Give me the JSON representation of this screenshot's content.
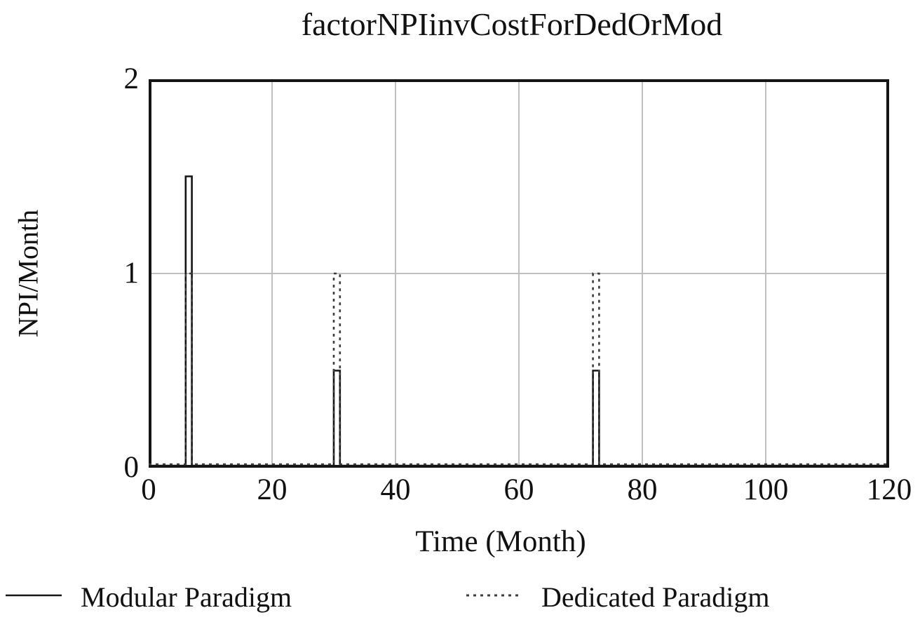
{
  "chart_data": {
    "type": "line",
    "title": "factorNPIinvCostForDedOrMod",
    "xlabel": "Time (Month)",
    "ylabel": "NPI/Month",
    "xlim": [
      0,
      120
    ],
    "ylim": [
      0,
      2
    ],
    "x_ticks": [
      0,
      20,
      40,
      60,
      80,
      100,
      120
    ],
    "y_ticks": [
      0,
      1,
      2
    ],
    "grid": true,
    "legend_position": "bottom",
    "colors": {
      "frame": "#151515",
      "gridline": "#bfbfbf",
      "solid_line": "#151515",
      "dotted_line": "#3d3d3d"
    },
    "series": [
      {
        "name": "Modular Paradigm",
        "style": "solid",
        "points": [
          [
            0,
            0
          ],
          [
            6,
            0
          ],
          [
            6,
            1.5
          ],
          [
            7,
            1.5
          ],
          [
            7,
            0
          ],
          [
            30,
            0
          ],
          [
            30,
            0.5
          ],
          [
            31,
            0.5
          ],
          [
            31,
            0
          ],
          [
            72,
            0
          ],
          [
            72,
            0.5
          ],
          [
            73,
            0.5
          ],
          [
            73,
            0
          ],
          [
            120,
            0
          ]
        ]
      },
      {
        "name": "Dedicated Paradigm",
        "style": "dotted",
        "points": [
          [
            0,
            0
          ],
          [
            6,
            0
          ],
          [
            6,
            1
          ],
          [
            7,
            1
          ],
          [
            7,
            0
          ],
          [
            30,
            0
          ],
          [
            30,
            1
          ],
          [
            31,
            1
          ],
          [
            31,
            0
          ],
          [
            72,
            0
          ],
          [
            72,
            1
          ],
          [
            73,
            1
          ],
          [
            73,
            0
          ],
          [
            120,
            0
          ]
        ]
      }
    ]
  }
}
